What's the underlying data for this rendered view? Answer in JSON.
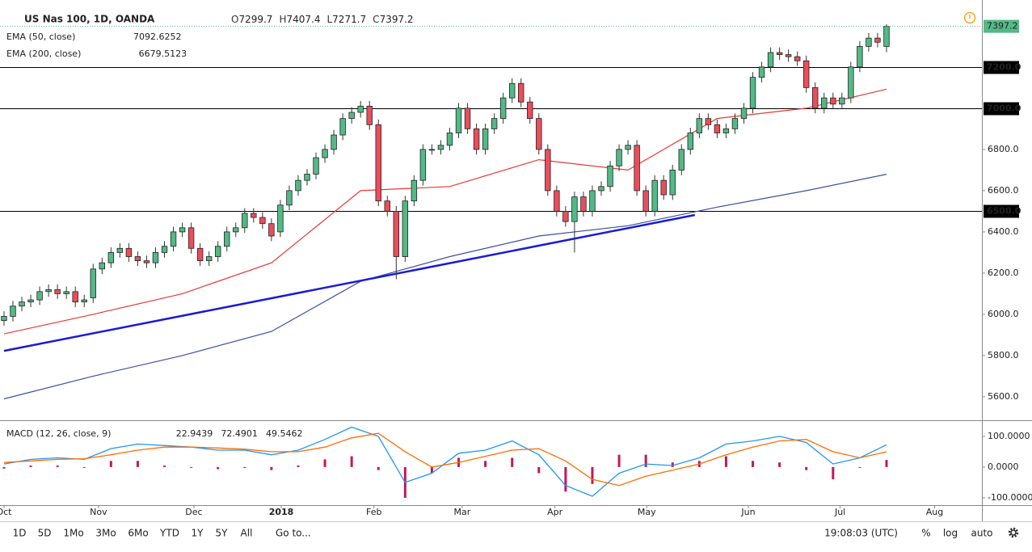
{
  "chart_data": {
    "type": "candlestick",
    "title": "US Nas 100, 1D, OANDA",
    "ohlc_letters": [
      "O",
      "H",
      "L",
      "C"
    ],
    "up_color": "#53b987",
    "down_color": "#eb4d5c",
    "xlim": [
      -0.45,
      109.7
    ],
    "xticks": [
      {
        "value": 0,
        "label": "Oct"
      },
      {
        "value": 10.6,
        "label": "Nov"
      },
      {
        "value": 21.3,
        "label": "Dec"
      },
      {
        "value": 31.1,
        "label": "2018"
      },
      {
        "value": 41.5,
        "label": "Feb"
      },
      {
        "value": 51.4,
        "label": "Mar"
      },
      {
        "value": 61.8,
        "label": "Apr"
      },
      {
        "value": 72.1,
        "label": "May"
      },
      {
        "value": 83.5,
        "label": "Jun"
      },
      {
        "value": 93.8,
        "label": "Jul"
      },
      {
        "value": 104.4,
        "label": "Aug"
      }
    ],
    "ylim": [
      5486,
      7525
    ],
    "yticks": [
      {
        "value": 5600,
        "label": "5600.0"
      },
      {
        "value": 5800,
        "label": "5800.0"
      },
      {
        "value": 6000,
        "label": "6000.0"
      },
      {
        "value": 6200,
        "label": "6200.0"
      },
      {
        "value": 6400,
        "label": "6400.0"
      },
      {
        "value": 6600,
        "label": "6600.0"
      },
      {
        "value": 6800,
        "label": "6800.0"
      }
    ],
    "hlines": [
      {
        "value": 7200,
        "label": "7200.0"
      },
      {
        "value": 7000,
        "label": "7000.0"
      },
      {
        "value": 6500,
        "label": "6500.0"
      }
    ],
    "open": [
      5970,
      5990,
      6040,
      6060,
      6070,
      6110,
      6120,
      6100,
      6110,
      6060,
      6080,
      6220,
      6250,
      6300,
      6320,
      6280,
      6260,
      6250,
      6300,
      6330,
      6400,
      6420,
      6320,
      6260,
      6280,
      6330,
      6400,
      6420,
      6490,
      6470,
      6440,
      6400,
      6530,
      6600,
      6650,
      6680,
      6760,
      6800,
      6870,
      6950,
      6980,
      7010,
      6920,
      6550,
      6500,
      6280,
      6550,
      6650,
      6800,
      6800,
      6820,
      6880,
      7000,
      6900,
      6800,
      6900,
      6950,
      7050,
      7120,
      7030,
      6950,
      6800,
      6600,
      6500,
      6450,
      6570,
      6500,
      6600,
      6620,
      6720,
      6800,
      6820,
      6600,
      6500,
      6650,
      6580,
      6700,
      6800,
      6880,
      6950,
      6920,
      6880,
      6900,
      6950,
      7000,
      7150,
      7200,
      7270,
      7260,
      7250,
      7230,
      7100,
      7000,
      7050,
      7020,
      7050,
      7200,
      7300,
      7340,
      7299.7
    ],
    "high": [
      6015,
      6065,
      6085,
      6095,
      6135,
      6145,
      6145,
      6135,
      6135,
      6095,
      6245,
      6275,
      6325,
      6345,
      6345,
      6305,
      6285,
      6325,
      6355,
      6425,
      6445,
      6445,
      6345,
      6305,
      6355,
      6425,
      6445,
      6515,
      6515,
      6495,
      6465,
      6555,
      6625,
      6675,
      6705,
      6785,
      6825,
      6895,
      6975,
      7005,
      7035,
      7035,
      6945,
      6575,
      6525,
      6575,
      6675,
      6825,
      6825,
      6845,
      6905,
      7025,
      7025,
      6925,
      6925,
      6975,
      7075,
      7145,
      7145,
      7055,
      6975,
      6825,
      6625,
      6525,
      6595,
      6595,
      6625,
      6645,
      6745,
      6825,
      6845,
      6845,
      6625,
      6675,
      6675,
      6725,
      6825,
      6905,
      6975,
      6975,
      6945,
      6925,
      6975,
      7025,
      7175,
      7225,
      7295,
      7295,
      7285,
      7275,
      7255,
      7125,
      7075,
      7075,
      7075,
      7225,
      7325,
      7365,
      7365,
      7407.4
    ],
    "low": [
      5945,
      5965,
      6015,
      6035,
      6045,
      6085,
      6075,
      6075,
      6035,
      6035,
      6055,
      6195,
      6225,
      6275,
      6255,
      6235,
      6225,
      6225,
      6275,
      6305,
      6375,
      6295,
      6235,
      6235,
      6255,
      6305,
      6375,
      6395,
      6445,
      6415,
      6355,
      6375,
      6505,
      6575,
      6625,
      6655,
      6735,
      6775,
      6845,
      6925,
      6955,
      6895,
      6525,
      6475,
      6170,
      6255,
      6525,
      6625,
      6775,
      6775,
      6795,
      6855,
      6875,
      6775,
      6775,
      6875,
      6925,
      7025,
      7005,
      6925,
      6775,
      6575,
      6475,
      6425,
      6300,
      6475,
      6475,
      6575,
      6595,
      6695,
      6775,
      6575,
      6475,
      6475,
      6555,
      6555,
      6675,
      6775,
      6855,
      6895,
      6855,
      6855,
      6875,
      6925,
      6975,
      7125,
      7175,
      7235,
      7225,
      7205,
      7075,
      6975,
      6975,
      6995,
      6995,
      7025,
      7175,
      7275,
      7295,
      7271.7
    ],
    "close": [
      5990,
      6040,
      6060,
      6070,
      6110,
      6120,
      6100,
      6110,
      6060,
      6070,
      6220,
      6250,
      6300,
      6320,
      6280,
      6260,
      6250,
      6300,
      6330,
      6400,
      6420,
      6320,
      6260,
      6280,
      6330,
      6400,
      6420,
      6490,
      6470,
      6440,
      6380,
      6530,
      6600,
      6650,
      6680,
      6760,
      6800,
      6870,
      6950,
      6980,
      7010,
      6920,
      6550,
      6500,
      6280,
      6550,
      6650,
      6800,
      6800,
      6820,
      6880,
      7000,
      6900,
      6800,
      6900,
      6950,
      7050,
      7120,
      7030,
      6950,
      6800,
      6600,
      6500,
      6450,
      6570,
      6500,
      6600,
      6620,
      6720,
      6800,
      6820,
      6600,
      6500,
      6650,
      6580,
      6700,
      6800,
      6880,
      6950,
      6920,
      6880,
      6900,
      6950,
      7000,
      7150,
      7200,
      7270,
      7260,
      7250,
      7230,
      7100,
      7000,
      7050,
      7020,
      7050,
      7200,
      7300,
      7340,
      7320,
      7397.2
    ],
    "overlays": [
      {
        "name": "EMA (50, close)",
        "color": "#e53935",
        "x": [
          0,
          10,
          20,
          30,
          40,
          50,
          60,
          70,
          80,
          90,
          99
        ],
        "values": [
          5905,
          6000,
          6100,
          6250,
          6600,
          6620,
          6750,
          6700,
          6950,
          7000,
          7092.6252
        ]
      },
      {
        "name": "EMA (200, close)",
        "color": "#3c4fa0",
        "x": [
          0,
          10,
          20,
          30,
          40,
          50,
          60,
          70,
          80,
          90,
          99
        ],
        "values": [
          5590,
          5700,
          5800,
          5917,
          6160,
          6280,
          6380,
          6430,
          6520,
          6600,
          6679.5123
        ]
      }
    ],
    "trendline": {
      "color": "#1a1ad6",
      "x": [
        0,
        77.5
      ],
      "values": [
        5823,
        6482
      ]
    },
    "macd": {
      "name": "MACD (12, 26, close, 9)",
      "ylim": [
        -124,
        147
      ],
      "yticks": [
        {
          "value": 100,
          "label": "100.0000"
        },
        {
          "value": 0,
          "label": "0.0000"
        },
        {
          "value": -100,
          "label": "-100.0000"
        }
      ],
      "x": [
        0,
        3,
        6,
        9,
        12,
        15,
        18,
        21,
        24,
        27,
        30,
        33,
        36,
        39,
        42,
        45,
        48,
        51,
        54,
        57,
        60,
        63,
        66,
        69,
        72,
        75,
        78,
        81,
        84,
        87,
        90,
        93,
        96,
        99
      ],
      "series": [
        {
          "name": "histogram",
          "color": "#c2185b",
          "values": [
            -5,
            5,
            5,
            -2,
            20,
            20,
            5,
            0,
            -7,
            -3,
            -10,
            5,
            25,
            35,
            -10,
            -100,
            -20,
            30,
            20,
            30,
            -20,
            -80,
            -55,
            40,
            40,
            15,
            20,
            35,
            20,
            15,
            -10,
            -40,
            0,
            22.9439
          ]
        },
        {
          "name": "macd",
          "color": "#2196f3",
          "values": [
            10,
            25,
            30,
            25,
            60,
            75,
            70,
            65,
            55,
            55,
            40,
            55,
            90,
            130,
            100,
            -50,
            -20,
            45,
            55,
            85,
            40,
            -60,
            -95,
            -20,
            10,
            5,
            30,
            75,
            85,
            100,
            80,
            10,
            30,
            72.4901
          ]
        },
        {
          "name": "signal",
          "color": "#ff6d00",
          "values": [
            15,
            20,
            25,
            27,
            40,
            55,
            65,
            65,
            62,
            58,
            50,
            50,
            65,
            95,
            110,
            50,
            0,
            15,
            35,
            55,
            60,
            20,
            -40,
            -60,
            -30,
            -10,
            10,
            40,
            65,
            85,
            90,
            50,
            30,
            49.5462
          ]
        }
      ]
    },
    "toolbar": {
      "ranges": [
        "1D",
        "5D",
        "1Mo",
        "3Mo",
        "6Mo",
        "YTD",
        "1Y",
        "5Y",
        "All"
      ],
      "goto": "Go to...",
      "clock": "19:08:03 (UTC)",
      "percent": "%",
      "log": "log",
      "auto": "auto"
    }
  }
}
